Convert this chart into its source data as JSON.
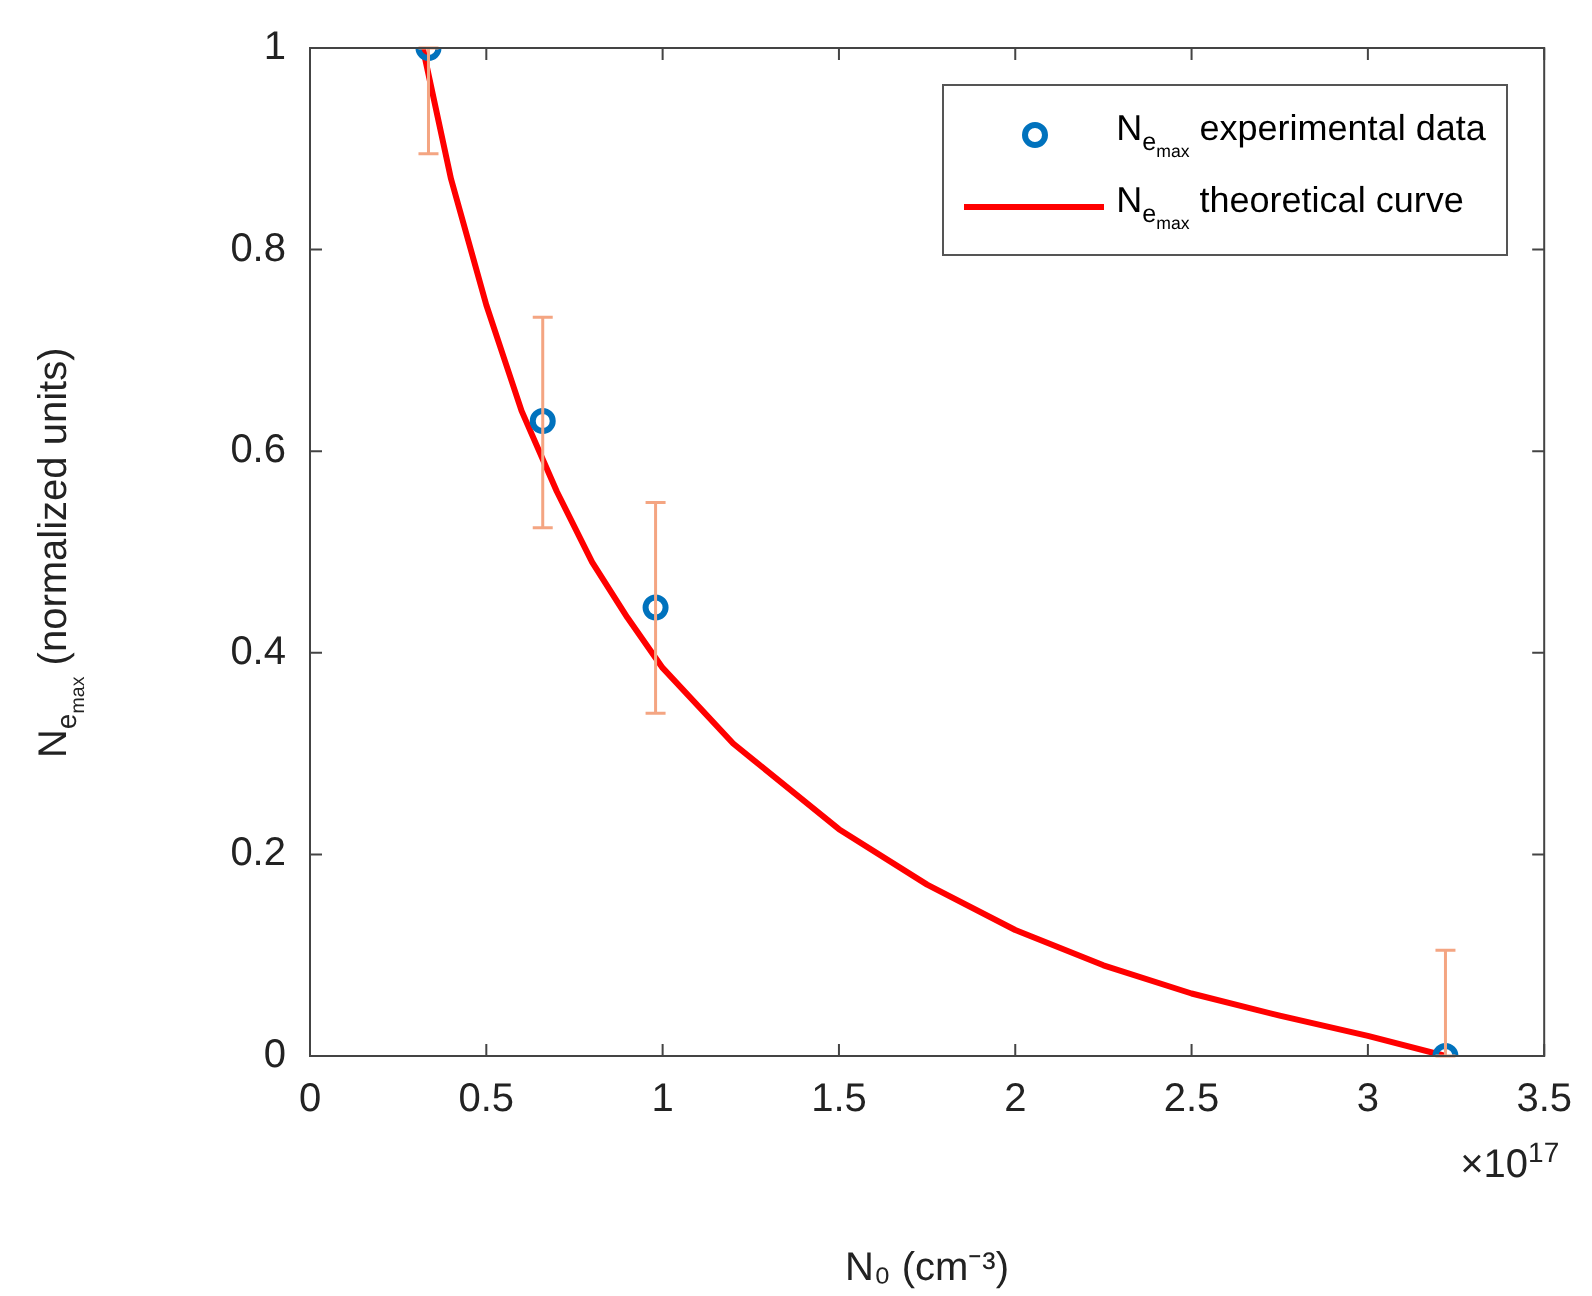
{
  "chart_data": {
    "type": "scatter",
    "xlabel": "N₀ (cm⁻³)",
    "ylabel": "N$_{e}$$_{max}$ (normalized units)",
    "xlim": [
      0,
      3.5
    ],
    "xticks": [
      0,
      0.5,
      1,
      1.5,
      2,
      2.5,
      3,
      3.5
    ],
    "ylim": [
      0,
      1
    ],
    "yticks": [
      0,
      0.2,
      0.4,
      0.6,
      0.8,
      1
    ],
    "grid": false,
    "legend": "top right",
    "marker": "circle",
    "annotations": [
      "×10$^{17}$"
    ],
    "series": [
      {
        "name": "N$_{e}$$_{max}$ experimental data",
        "type": "scatter",
        "color": "#0072bd",
        "x": [
          0.336,
          0.66,
          0.98,
          3.22
        ],
        "values": [
          1,
          0.63,
          0.445,
          0
        ],
        "errors": [
          [
            0.895,
            1
          ],
          [
            0.524,
            0.733
          ],
          [
            0.34,
            0.549
          ],
          [
            0,
            0.105
          ]
        ]
      },
      {
        "name": "N$_{e}$$_{max}$ theoretical curve",
        "type": "line",
        "color": "#ff0000",
        "line_style": "solid",
        "marker": "none",
        "x": [
          0.32,
          0.4,
          0.5,
          0.6,
          0.7,
          0.8,
          0.9,
          1.0,
          1.2,
          1.5,
          1.75,
          2.0,
          2.25,
          2.5,
          2.75,
          3.0,
          3.22
        ],
        "values": [
          1,
          0.87,
          0.745,
          0.64,
          0.56,
          0.49,
          0.435,
          0.385,
          0.31,
          0.225,
          0.17,
          0.125,
          0.09,
          0.062,
          0.04,
          0.02,
          0
        ]
      }
    ]
  }
}
